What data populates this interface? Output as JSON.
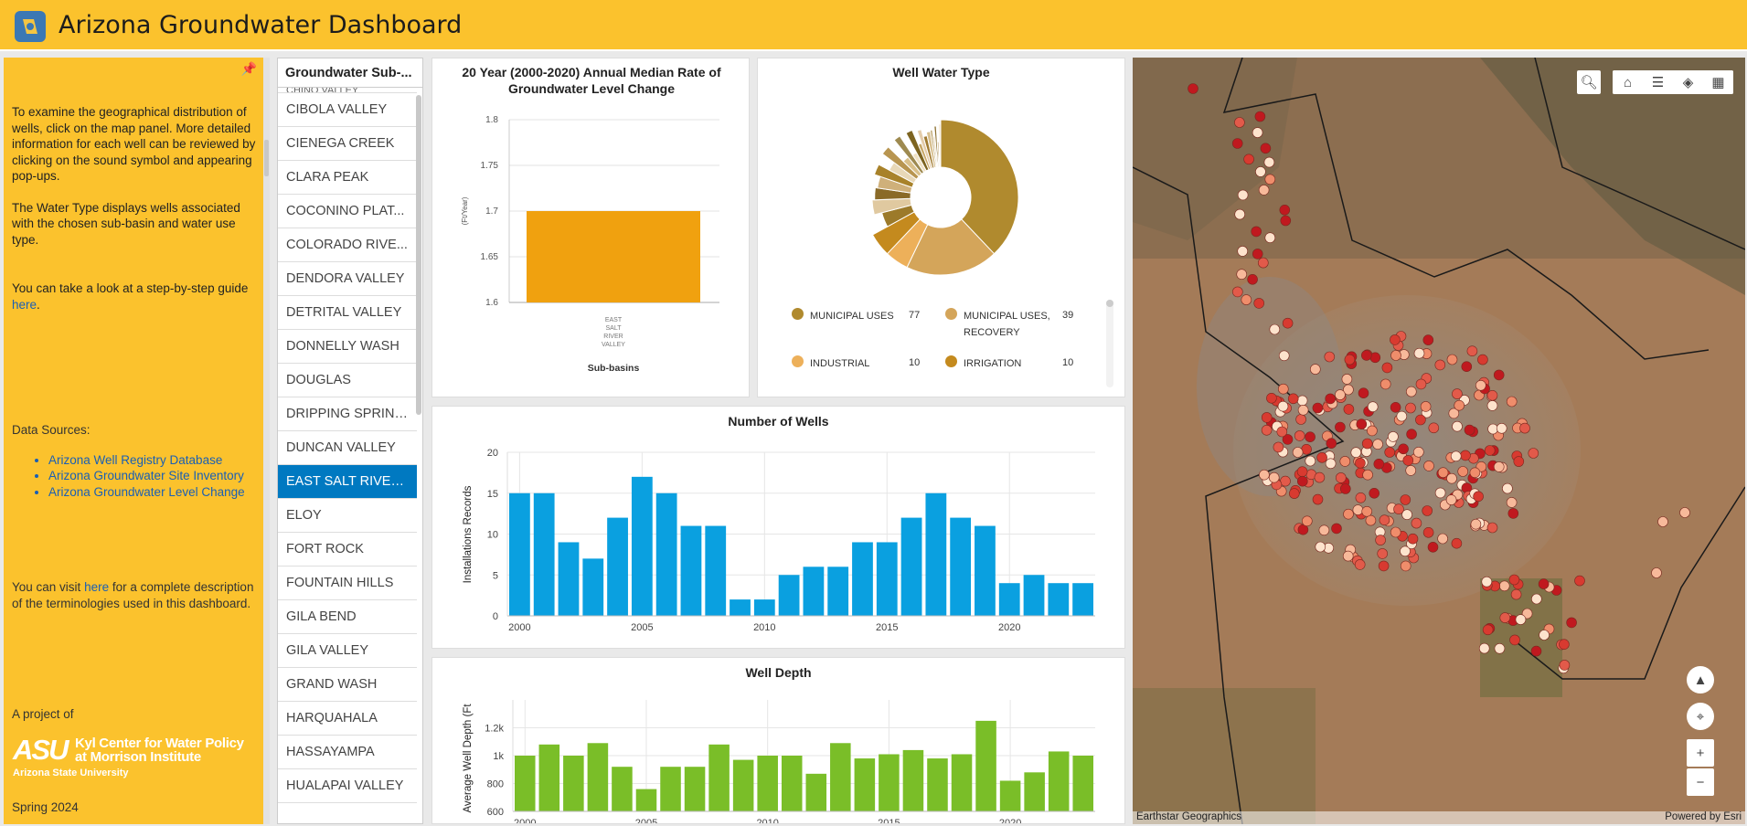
{
  "header": {
    "title": "Arizona Groundwater Dashboard"
  },
  "sidebar": {
    "intro_p1": "To examine the geographical distribution of wells, click on the map panel. More detailed information for each well can be reviewed by clicking on the sound symbol and appearing pop-ups.",
    "intro_p2": "The Water Type displays wells associated with the chosen sub-basin and water use type.",
    "guide_text": "You can take a look at a step-by-step guide",
    "guide_link": "here",
    "guide_end": ".",
    "data_sources_label": "Data Sources:",
    "data_sources": [
      "Arizona Well Registry Database",
      "Arizona Groundwater Site Inventory",
      "Arizona Groundwater Level Change"
    ],
    "visit_text": "You can visit",
    "visit_link": "here",
    "visit_end": "for a complete description of the terminologies used in this dashboard.",
    "project_label": "A project of",
    "asu_mark": "ASU",
    "asu_line1": "Kyl Center for Water Policy",
    "asu_line2": "at Morrison Institute",
    "asu_univ": "Arizona State University",
    "season": "Spring 2024"
  },
  "list": {
    "header": "Groundwater Sub-...",
    "partial_item": "CHINO VALLEY",
    "items": [
      "CIBOLA VALLEY",
      "CIENEGA CREEK",
      "CLARA PEAK",
      "COCONINO PLAT...",
      "COLORADO RIVE...",
      "DENDORA VALLEY",
      "DETRITAL VALLEY",
      "DONNELLY WASH",
      "DOUGLAS",
      "DRIPPING SPRING...",
      "DUNCAN VALLEY",
      "EAST SALT RIVER ...",
      "ELOY",
      "FORT ROCK",
      "FOUNTAIN HILLS",
      "GILA BEND",
      "GILA VALLEY",
      "GRAND WASH",
      "HARQUAHALA",
      "HASSAYAMPA",
      "HUALAPAI VALLEY"
    ],
    "selected_index": 11
  },
  "colors": {
    "header": "#fbc22d",
    "selected": "#0079c1",
    "wells_bar": "#0aa0e0",
    "depth_bar": "#7abe28",
    "median_bar": "#f0a10f"
  },
  "chart_data": [
    {
      "id": "median-rate",
      "type": "bar",
      "title": "20 Year (2000-2020) Annual Median Rate of Groundwater Level Change",
      "xlabel": "Sub-basins",
      "ylabel": "(Ft/Year)",
      "categories": [
        "EAST SALT RIVER VALLEY"
      ],
      "category_lines": [
        "EAST",
        "SALT",
        "RIVER",
        "VALLEY"
      ],
      "values": [
        1.7
      ],
      "ylim": [
        1.6,
        1.8
      ],
      "yticks": [
        "1.8",
        "1.75",
        "1.7",
        "1.65",
        "1.6"
      ],
      "grid": true
    },
    {
      "id": "well-water-type",
      "type": "pie",
      "title": "Well Water Type",
      "legend": [
        {
          "label": "MUNICIPAL USES",
          "value": 77,
          "color": "#b08a2e"
        },
        {
          "label": "MUNICIPAL USES, RECOVERY",
          "value": 39,
          "color": "#d4a55a"
        },
        {
          "label": "INDUSTRIAL",
          "value": 10,
          "color": "#edb05a"
        },
        {
          "label": "IRRIGATION",
          "value": 10,
          "color": "#c48a1e"
        }
      ],
      "minor_slices": [
        8,
        7,
        6,
        6,
        5,
        5,
        4,
        4,
        3,
        3,
        3,
        2,
        2,
        2,
        2,
        1,
        1,
        1,
        1,
        1
      ],
      "minor_colors": [
        "#9c7a2a",
        "#e0c9a0",
        "#8a6a28",
        "#cfb07a",
        "#a8822a",
        "#e8d8b8",
        "#b89550",
        "#d9c08a",
        "#9e8a50",
        "#f0e2c4",
        "#7d6420",
        "#c8a868",
        "#e4ccaa",
        "#a07a30",
        "#d8c090",
        "#b49858",
        "#eadbc0",
        "#8c7030",
        "#cdb482",
        "#f5ead6"
      ]
    },
    {
      "id": "number-of-wells",
      "type": "bar",
      "title": "Number of Wells",
      "ylabel": "Installations Records",
      "x": [
        2000,
        2001,
        2002,
        2003,
        2004,
        2005,
        2006,
        2007,
        2008,
        2009,
        2010,
        2011,
        2012,
        2013,
        2014,
        2015,
        2016,
        2017,
        2018,
        2019,
        2020,
        2021,
        2022,
        2023
      ],
      "values": [
        15,
        15,
        9,
        7,
        12,
        17,
        15,
        11,
        11,
        2,
        2,
        5,
        6,
        6,
        9,
        9,
        12,
        15,
        12,
        11,
        4,
        5,
        4,
        4
      ],
      "ylim": [
        0,
        20
      ],
      "yticks": [
        0,
        5,
        10,
        15,
        20
      ],
      "xticks": [
        2000,
        2005,
        2010,
        2015,
        2020
      ],
      "grid": true
    },
    {
      "id": "well-depth",
      "type": "bar",
      "title": "Well Depth",
      "ylabel": "Average Well Depth (Ft",
      "x": [
        2000,
        2001,
        2002,
        2003,
        2004,
        2005,
        2006,
        2007,
        2008,
        2009,
        2010,
        2011,
        2012,
        2013,
        2014,
        2015,
        2016,
        2017,
        2018,
        2019,
        2020,
        2021,
        2022,
        2023
      ],
      "values": [
        1000,
        1080,
        1000,
        1090,
        920,
        760,
        920,
        920,
        1080,
        970,
        1000,
        1000,
        870,
        1090,
        980,
        1010,
        1040,
        980,
        1010,
        1250,
        820,
        880,
        1030,
        1000
      ],
      "ylim": [
        600,
        1400
      ],
      "yticks": [
        "600",
        "800",
        "1k",
        "1.2k"
      ],
      "ytick_values": [
        600,
        800,
        1000,
        1200
      ],
      "xticks": [
        2000,
        2005,
        2010,
        2015,
        2020
      ],
      "grid": true
    }
  ],
  "map": {
    "attribution": "Earthstar Geographics",
    "powered": "Powered by Esri",
    "tools": [
      "search-icon",
      "home-icon",
      "legend-icon",
      "layers-icon",
      "qr-code-icon"
    ]
  }
}
